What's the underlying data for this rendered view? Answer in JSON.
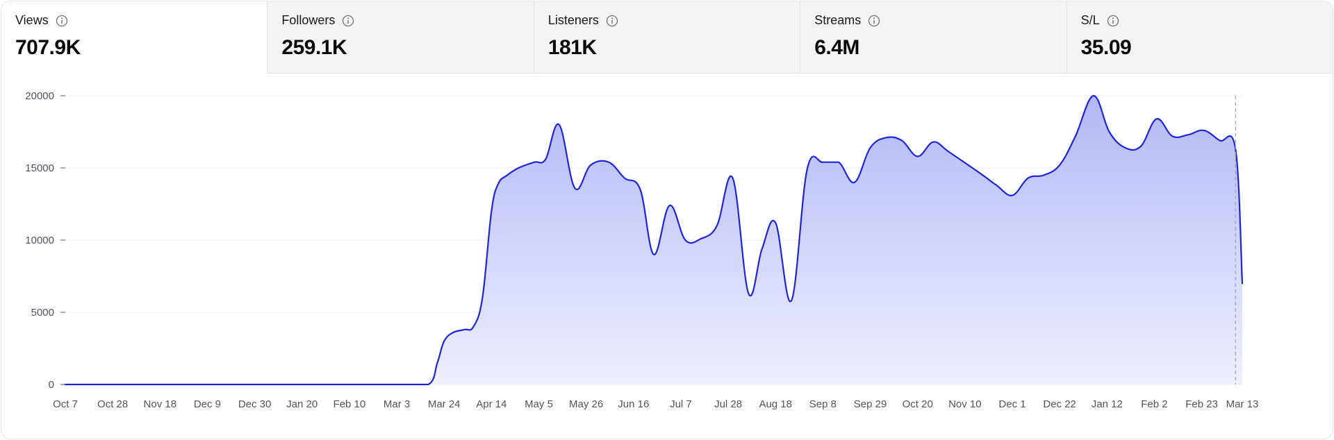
{
  "tabs": [
    {
      "label": "Views",
      "value": "707.9K",
      "active": true
    },
    {
      "label": "Followers",
      "value": "259.1K",
      "active": false
    },
    {
      "label": "Listeners",
      "value": "181K",
      "active": false
    },
    {
      "label": "Streams",
      "value": "6.4M",
      "active": false
    },
    {
      "label": "S/L",
      "value": "35.09",
      "active": false
    }
  ],
  "info_icon": "info-circle-icon",
  "colors": {
    "line": "#1d25d6",
    "fill_top": "#b3b8f6",
    "fill_bottom": "#eef0fd",
    "grid": "#ececee",
    "active_tab_bg": "#ffffff",
    "inactive_tab_bg": "#f4f4f5"
  },
  "chart_data": {
    "type": "area",
    "title": "",
    "xlabel": "",
    "ylabel": "",
    "ylim": [
      0,
      20000
    ],
    "yticks": [
      {
        "value": 0,
        "label": "0"
      },
      {
        "value": 5000,
        "label": "5000"
      },
      {
        "value": 10000,
        "label": "10000"
      },
      {
        "value": 15000,
        "label": "15000"
      },
      {
        "value": 20000,
        "label": "20000"
      }
    ],
    "xticks": [
      "Oct 7",
      "Oct 28",
      "Nov 18",
      "Dec 9",
      "Dec 30",
      "Jan 20",
      "Feb 10",
      "Mar 3",
      "Mar 24",
      "Apr 14",
      "May 5",
      "May 26",
      "Jun 16",
      "Jul 7",
      "Jul 28",
      "Aug 18",
      "Sep 8",
      "Sep 29",
      "Oct 20",
      "Nov 10",
      "Dec 1",
      "Dec 22",
      "Jan 12",
      "Feb 2",
      "Feb 23",
      "Mar 13"
    ],
    "grid": true,
    "legend": "none",
    "marker": {
      "at": "Mar 10",
      "style": "dashed-vertical"
    },
    "series": [
      {
        "points": [
          [
            "Oct 7",
            0
          ],
          [
            "Nov 18",
            0
          ],
          [
            "Jan 20",
            0
          ],
          [
            "Mar 3",
            0
          ],
          [
            "Mar 17",
            0
          ],
          [
            "Mar 21",
            1500
          ],
          [
            "Mar 24",
            3000
          ],
          [
            "Mar 28",
            3600
          ],
          [
            "Apr 2",
            3800
          ],
          [
            "Apr 6",
            4000
          ],
          [
            "Apr 10",
            6000
          ],
          [
            "Apr 14",
            12000
          ],
          [
            "Apr 17",
            13900
          ],
          [
            "Apr 21",
            14500
          ],
          [
            "Apr 26",
            15000
          ],
          [
            "May 3",
            15400
          ],
          [
            "May 8",
            15600
          ],
          [
            "May 14",
            18000
          ],
          [
            "May 21",
            13600
          ],
          [
            "May 28",
            15200
          ],
          [
            "Jun 5",
            15400
          ],
          [
            "Jun 12",
            14300
          ],
          [
            "Jun 19",
            13500
          ],
          [
            "Jun 25",
            9000
          ],
          [
            "Jul 2",
            12400
          ],
          [
            "Jul 9",
            10000
          ],
          [
            "Jul 16",
            10100
          ],
          [
            "Jul 23",
            11000
          ],
          [
            "Jul 30",
            14300
          ],
          [
            "Aug 6",
            6300
          ],
          [
            "Aug 12",
            9400
          ],
          [
            "Aug 18",
            11200
          ],
          [
            "Aug 25",
            5800
          ],
          [
            "Sep 1",
            14900
          ],
          [
            "Sep 8",
            15400
          ],
          [
            "Sep 15",
            15400
          ],
          [
            "Sep 22",
            14000
          ],
          [
            "Sep 29",
            16400
          ],
          [
            "Oct 6",
            17100
          ],
          [
            "Oct 13",
            16900
          ],
          [
            "Oct 20",
            15800
          ],
          [
            "Oct 27",
            16800
          ],
          [
            "Nov 3",
            16100
          ],
          [
            "Nov 17",
            14600
          ],
          [
            "Nov 24",
            13800
          ],
          [
            "Dec 1",
            13100
          ],
          [
            "Dec 8",
            14300
          ],
          [
            "Dec 15",
            14500
          ],
          [
            "Dec 22",
            15200
          ],
          [
            "Dec 29",
            17200
          ],
          [
            "Jan 6",
            20000
          ],
          [
            "Jan 13",
            17500
          ],
          [
            "Jan 20",
            16400
          ],
          [
            "Jan 27",
            16500
          ],
          [
            "Feb 3",
            18400
          ],
          [
            "Feb 10",
            17200
          ],
          [
            "Feb 17",
            17300
          ],
          [
            "Feb 24",
            17600
          ],
          [
            "Mar 3",
            16900
          ],
          [
            "Mar 10",
            16300
          ],
          [
            "Mar 13",
            7000
          ]
        ]
      }
    ]
  }
}
